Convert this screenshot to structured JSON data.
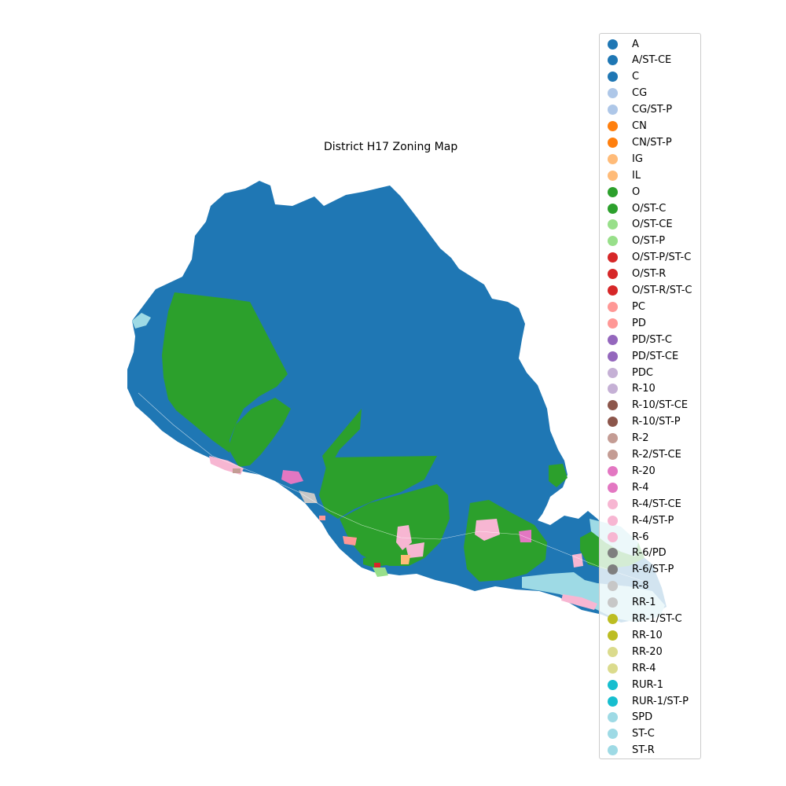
{
  "title": "District H17 Zoning Map",
  "legend": [
    {
      "label": "A",
      "color": "#1f77b4"
    },
    {
      "label": "A/ST-CE",
      "color": "#1f77b4"
    },
    {
      "label": "C",
      "color": "#1f77b4"
    },
    {
      "label": "CG",
      "color": "#aec7e8"
    },
    {
      "label": "CG/ST-P",
      "color": "#aec7e8"
    },
    {
      "label": "CN",
      "color": "#ff7f0e"
    },
    {
      "label": "CN/ST-P",
      "color": "#ff7f0e"
    },
    {
      "label": "IG",
      "color": "#ffbb78"
    },
    {
      "label": "IL",
      "color": "#ffbb78"
    },
    {
      "label": "O",
      "color": "#2ca02c"
    },
    {
      "label": "O/ST-C",
      "color": "#2ca02c"
    },
    {
      "label": "O/ST-CE",
      "color": "#98df8a"
    },
    {
      "label": "O/ST-P",
      "color": "#98df8a"
    },
    {
      "label": "O/ST-P/ST-C",
      "color": "#d62728"
    },
    {
      "label": "O/ST-R",
      "color": "#d62728"
    },
    {
      "label": "O/ST-R/ST-C",
      "color": "#d62728"
    },
    {
      "label": "PC",
      "color": "#ff9896"
    },
    {
      "label": "PD",
      "color": "#ff9896"
    },
    {
      "label": "PD/ST-C",
      "color": "#9467bd"
    },
    {
      "label": "PD/ST-CE",
      "color": "#9467bd"
    },
    {
      "label": "PDC",
      "color": "#c5b0d5"
    },
    {
      "label": "R-10",
      "color": "#c5b0d5"
    },
    {
      "label": "R-10/ST-CE",
      "color": "#8c564b"
    },
    {
      "label": "R-10/ST-P",
      "color": "#8c564b"
    },
    {
      "label": "R-2",
      "color": "#c49c94"
    },
    {
      "label": "R-2/ST-CE",
      "color": "#c49c94"
    },
    {
      "label": "R-20",
      "color": "#e377c2"
    },
    {
      "label": "R-4",
      "color": "#e377c2"
    },
    {
      "label": "R-4/ST-CE",
      "color": "#f7b6d2"
    },
    {
      "label": "R-4/ST-P",
      "color": "#f7b6d2"
    },
    {
      "label": "R-6",
      "color": "#f7b6d2"
    },
    {
      "label": "R-6/PD",
      "color": "#7f7f7f"
    },
    {
      "label": "R-6/ST-P",
      "color": "#7f7f7f"
    },
    {
      "label": "R-8",
      "color": "#c7c7c7"
    },
    {
      "label": "RR-1",
      "color": "#c7c7c7"
    },
    {
      "label": "RR-1/ST-C",
      "color": "#bcbd22"
    },
    {
      "label": "RR-10",
      "color": "#bcbd22"
    },
    {
      "label": "RR-20",
      "color": "#dbdb8d"
    },
    {
      "label": "RR-4",
      "color": "#dbdb8d"
    },
    {
      "label": "RUR-1",
      "color": "#17becf"
    },
    {
      "label": "RUR-1/ST-P",
      "color": "#17becf"
    },
    {
      "label": "SPD",
      "color": "#9edae5"
    },
    {
      "label": "ST-C",
      "color": "#9edae5"
    },
    {
      "label": "ST-R",
      "color": "#9edae5"
    }
  ]
}
